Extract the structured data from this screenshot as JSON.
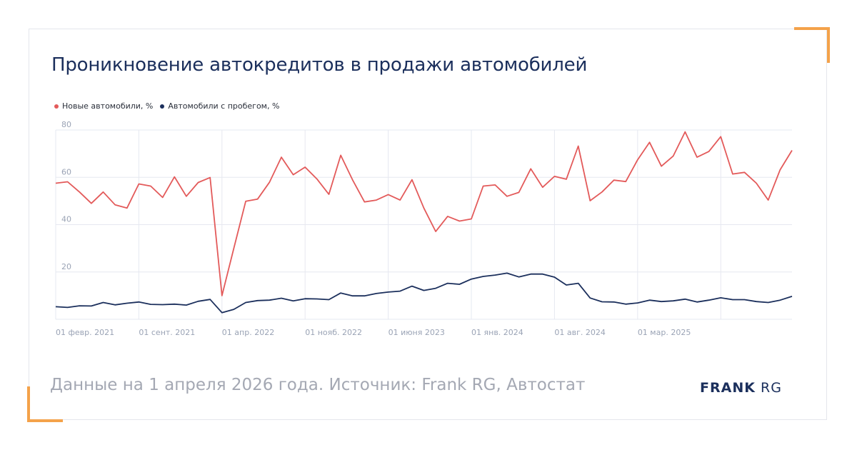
{
  "title": "Проникновение автокредитов в продажи автомобилей",
  "footer": "Данные на 1 апреля 2026 года. Источник: Frank RG, Автостат",
  "logo": {
    "bold": "FRANK",
    "light": "RG"
  },
  "colors": {
    "new": "#e35a5a",
    "used": "#1b2f5c",
    "accent": "#f4a24a",
    "grid": "#e6e8f0"
  },
  "chart_data": {
    "type": "line",
    "title": "Проникновение автокредитов в продажи автомобилей",
    "xlabel": "",
    "ylabel": "",
    "ylim": [
      0,
      80
    ],
    "y_ticks": [
      "20",
      "40",
      "60",
      "80"
    ],
    "x_ticks": [
      "01 февр. 2021",
      "01 сент. 2021",
      "01 апр. 2022",
      "01 нояб. 2022",
      "01 июня 2023",
      "01 янв. 2024",
      "01 авг. 2024",
      "01 мар. 2025"
    ],
    "grid": true,
    "legend_position": "top-left",
    "series": [
      {
        "name": "Новые автомобили, %",
        "color": "#e35a5a",
        "values": [
          57.5,
          58.1,
          53.8,
          49,
          53.8,
          48.4,
          47,
          57.2,
          56.3,
          51.5,
          60.2,
          52,
          57.8,
          59.9,
          10,
          30,
          49.9,
          50.8,
          57.9,
          68.5,
          61.1,
          64.3,
          59.3,
          52.8,
          69.3,
          58.9,
          49.6,
          50.4,
          52.7,
          50.4,
          59,
          47,
          37.1,
          43.5,
          41.5,
          42.4,
          56.3,
          56.8,
          52,
          53.6,
          63.6,
          55.8,
          60.4,
          59.2,
          73.2,
          50.1,
          53.8,
          58.8,
          58.2,
          67.4,
          74.8,
          64.7,
          69,
          79.2,
          68.5,
          70.9,
          77.2,
          61.4,
          62.1,
          57.5,
          50.4,
          63.2,
          71.4
        ]
      },
      {
        "name": "Автомобили с пробегом, %",
        "color": "#1b2f5c",
        "values": [
          5.3,
          5,
          5.7,
          5.6,
          7.1,
          6.1,
          6.8,
          7.3,
          6.3,
          6.2,
          6.4,
          6,
          7.6,
          8.4,
          2.8,
          4.2,
          7.1,
          7.9,
          8.1,
          8.9,
          7.8,
          8.7,
          8.6,
          8.3,
          11.1,
          9.9,
          9.9,
          10.9,
          11.5,
          11.9,
          14,
          12.2,
          13.1,
          15.2,
          14.8,
          17,
          18.1,
          18.7,
          19.5,
          17.9,
          19.1,
          19.1,
          17.8,
          14.5,
          15.2,
          9,
          7.4,
          7.3,
          6.4,
          6.9,
          8.1,
          7.5,
          7.8,
          8.5,
          7.3,
          8.1,
          9.1,
          8.3,
          8.3,
          7.5,
          7.1,
          8.1,
          9.7
        ]
      }
    ]
  }
}
